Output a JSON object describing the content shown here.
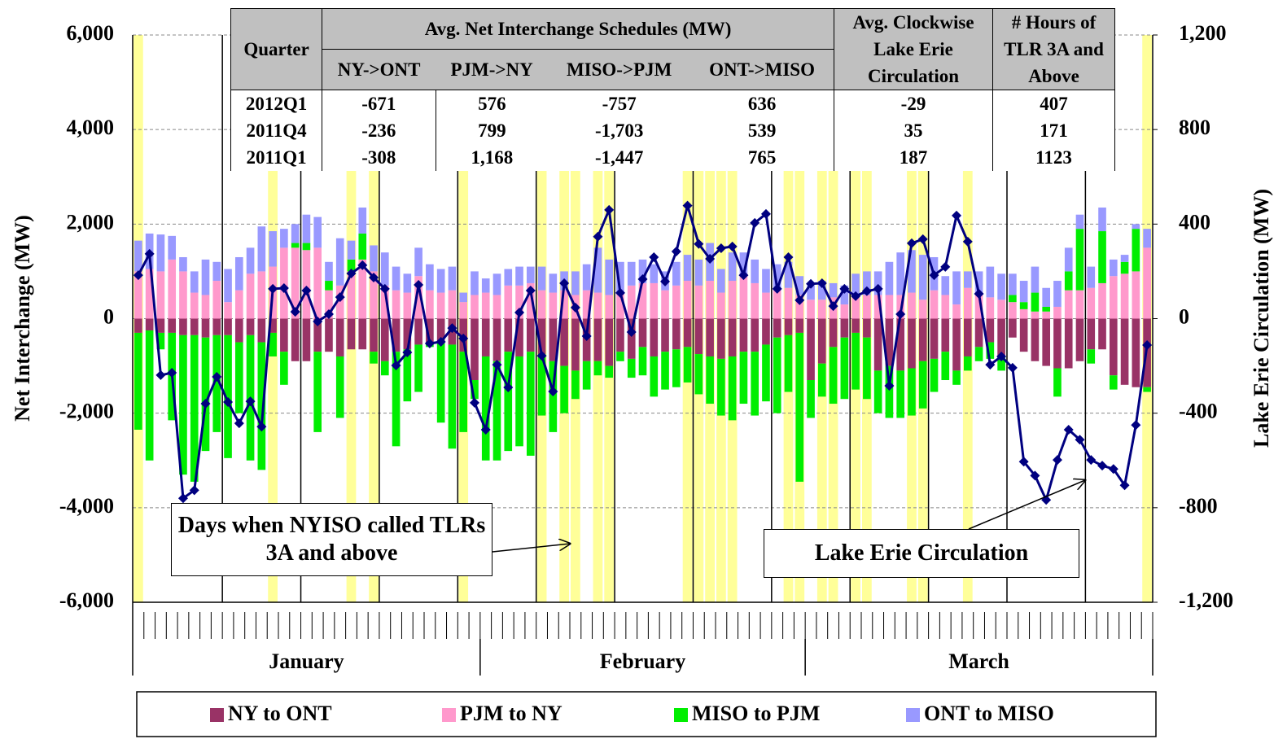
{
  "chart_data": {
    "type": "bar",
    "y_axis_label": "Net Interchange (MW)",
    "y2_axis_label": "Lake Erie Circulation (MW)",
    "ylim": [
      -6000,
      6000
    ],
    "yticks": [
      {
        "value": 6000,
        "label": "6,000"
      },
      {
        "value": 4000,
        "label": "4,000"
      },
      {
        "value": 2000,
        "label": "2,000"
      },
      0,
      {
        "value": -2000,
        "label": "-2,000"
      },
      {
        "value": -4000,
        "label": "-4,000"
      },
      {
        "value": -6000,
        "label": "-6,000"
      }
    ],
    "y2lim": [
      -1200,
      1200
    ],
    "y2ticks": [
      {
        "value": 1200,
        "label": "1,200"
      },
      800,
      400,
      0,
      -400,
      -800,
      {
        "value": -1200,
        "label": "-1,200"
      }
    ],
    "grid": true,
    "months": [
      {
        "label": "January",
        "days": 31
      },
      {
        "label": "February",
        "days": 29
      },
      {
        "label": "March",
        "days": 31
      }
    ],
    "tlr_days": [
      1,
      13,
      20,
      22,
      30,
      37,
      39,
      40,
      42,
      43,
      50,
      51,
      52,
      53,
      54,
      59,
      60,
      62,
      63,
      65,
      66,
      70,
      71,
      75,
      91
    ],
    "tlr_color": "#ffff99",
    "week_lines": [
      8,
      15,
      22,
      29,
      36,
      43,
      50,
      57,
      64,
      71,
      78,
      85
    ],
    "series": [
      {
        "name": "NY to ONT",
        "color": "#993366",
        "values": [
          -300,
          -250,
          -300,
          -300,
          -350,
          -350,
          -400,
          -350,
          -350,
          -500,
          -350,
          -500,
          -300,
          -700,
          -900,
          -900,
          -700,
          -700,
          -800,
          -650,
          -650,
          -700,
          -900,
          -700,
          -650,
          -550,
          -500,
          -500,
          -550,
          -700,
          -1300,
          -800,
          -900,
          -700,
          -800,
          -700,
          -750,
          -900,
          -1000,
          -1100,
          -900,
          -900,
          -1000,
          -700,
          -850,
          -600,
          -800,
          -700,
          -650,
          -600,
          -750,
          -800,
          -850,
          -800,
          -700,
          -700,
          -550,
          -400,
          -350,
          -300,
          -1300,
          -950,
          -600,
          -400,
          -300,
          -400,
          -1100,
          -1000,
          -1100,
          -1050,
          -900,
          -850,
          -700,
          -1100,
          -800,
          -600,
          -500,
          -800,
          -400,
          -700,
          -900,
          -1000,
          -1050,
          -1050,
          -900,
          -650,
          -650,
          -1200,
          -1400,
          -1450,
          -1450
        ]
      },
      {
        "name": "PJM to NY",
        "color": "#ff99cc",
        "values": [
          1000,
          1050,
          1000,
          1250,
          1000,
          550,
          500,
          800,
          350,
          600,
          950,
          1000,
          1100,
          1500,
          1500,
          1450,
          1500,
          600,
          700,
          1000,
          1250,
          1000,
          700,
          600,
          550,
          900,
          600,
          550,
          600,
          350,
          500,
          550,
          500,
          700,
          700,
          750,
          600,
          550,
          600,
          500,
          600,
          550,
          500,
          550,
          700,
          750,
          750,
          600,
          700,
          800,
          700,
          800,
          550,
          800,
          950,
          750,
          550,
          600,
          650,
          500,
          400,
          400,
          450,
          300,
          450,
          500,
          500,
          500,
          500,
          550,
          400,
          600,
          500,
          300,
          650,
          500,
          450,
          400,
          350,
          200,
          150,
          150,
          250,
          600,
          600,
          650,
          750,
          900,
          950,
          1000,
          1500
        ]
      },
      {
        "name": "MISO to PJM",
        "color": "#00ee00",
        "values": [
          -2050,
          -2750,
          -350,
          -1850,
          -2950,
          -3100,
          -2400,
          -2050,
          -2600,
          -1500,
          -2650,
          -2700,
          -500,
          -700,
          100,
          150,
          -1700,
          200,
          -1300,
          250,
          550,
          -250,
          -300,
          -2000,
          -1100,
          -1000,
          -100,
          -1700,
          -2200,
          -1700,
          -400,
          -2200,
          -2100,
          -2100,
          -1900,
          -2200,
          -1300,
          -1500,
          -1000,
          -600,
          -600,
          -300,
          -250,
          -200,
          -400,
          -600,
          -850,
          -800,
          -800,
          -750,
          -850,
          -1000,
          -1200,
          -1350,
          -1100,
          -1350,
          -1200,
          -1600,
          -1200,
          -3150,
          -800,
          -700,
          -1200,
          -1300,
          -1200,
          -1300,
          -900,
          -1100,
          -1000,
          -1000,
          -1000,
          -700,
          -600,
          -300,
          -300,
          -300,
          -350,
          -300,
          150,
          150,
          400,
          100,
          -600,
          400,
          1300,
          -300,
          1100,
          -300,
          250,
          900,
          -100
        ]
      },
      {
        "name": "ONT to MISO",
        "color": "#9999ff",
        "values": [
          650,
          750,
          780,
          500,
          300,
          450,
          750,
          400,
          700,
          700,
          550,
          950,
          750,
          400,
          400,
          600,
          650,
          400,
          1000,
          400,
          550,
          550,
          700,
          500,
          400,
          600,
          550,
          500,
          500,
          200,
          500,
          300,
          450,
          350,
          400,
          350,
          500,
          400,
          400,
          500,
          550,
          950,
          750,
          650,
          500,
          500,
          400,
          400,
          500,
          550,
          550,
          800,
          500,
          600,
          450,
          500,
          500,
          550,
          550,
          400,
          300,
          400,
          300,
          400,
          500,
          500,
          500,
          700,
          900,
          900,
          950,
          700,
          400,
          700,
          350,
          500,
          650,
          550,
          450,
          450,
          550,
          400,
          550,
          500,
          300,
          450,
          500,
          350,
          150,
          100,
          400
        ]
      },
      {
        "type": "line",
        "axis": "y2",
        "color": "#000080",
        "values": [
          184,
          274,
          -239,
          -229,
          -760,
          -726,
          -360,
          -246,
          -353,
          -443,
          -350,
          -457,
          126,
          129,
          29,
          119,
          -12,
          19,
          91,
          191,
          226,
          174,
          126,
          -198,
          -143,
          143,
          -105,
          -98,
          -40,
          -84,
          -356,
          -470,
          -195,
          -291,
          26,
          119,
          -157,
          -308,
          150,
          47,
          -74,
          347,
          460,
          109,
          -57,
          167,
          260,
          157,
          284,
          478,
          316,
          253,
          298,
          305,
          184,
          405,
          443,
          126,
          260,
          78,
          147,
          150,
          53,
          126,
          95,
          116,
          126,
          -284,
          19,
          319,
          336,
          184,
          219,
          436,
          326,
          105,
          -195,
          -160,
          -208,
          -605,
          -664,
          -767,
          -598,
          -470,
          -512,
          -598,
          -622,
          -636,
          -705,
          -450,
          -112
        ]
      }
    ],
    "annotations": [
      "Days when NYISO called TLRs 3A and above",
      "Lake Erie Circulation"
    ],
    "table": {
      "quarter": "Quarter",
      "group": "Avg. Net Interchange Schedules (MW)",
      "subcolumns": [
        "NY->ONT",
        "PJM->NY",
        "MISO->PJM",
        "ONT->MISO"
      ],
      "circulation": "Avg. Clockwise Lake Erie Circulation",
      "tlr_hours": "# Hours of TLR 3A and Above",
      "rows": [
        [
          "2012Q1",
          "-671",
          "576",
          "-757",
          "636",
          "-29",
          "407"
        ],
        [
          "2011Q4",
          "-236",
          "799",
          "-1,703",
          "539",
          "35",
          "171"
        ],
        [
          "2011Q1",
          "-308",
          "1,168",
          "-1,447",
          "765",
          "187",
          "1123"
        ]
      ]
    }
  }
}
